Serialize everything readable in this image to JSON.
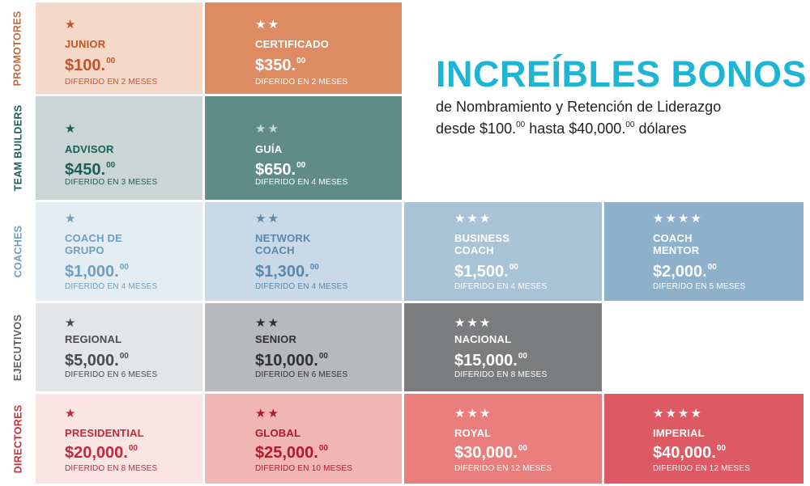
{
  "headline": {
    "title": "INCREÍBLES BONOS",
    "line1": "de Nombramiento y Retención de Liderazgo",
    "line2_a": "desde $100.",
    "line2_a_cents": "00",
    "line2_b": " hasta $40,000.",
    "line2_b_cents": "00",
    "line2_c": " dólares"
  },
  "rows": [
    {
      "label": "PROMOTORES",
      "label_color": "#c26a3f",
      "cells": [
        {
          "stars": "★",
          "name": "JUNIOR",
          "price": "$100.",
          "cents": "00",
          "deferred": "DIFERIDO EN 2 MESES",
          "bg": "#f4d9c9",
          "fg": "#c4532a",
          "star_color": "#c4532a"
        },
        {
          "stars": "★★",
          "name": "CERTIFICADO",
          "price": "$350.",
          "cents": "00",
          "deferred": "DIFERIDO EN 2 MESES",
          "bg": "#dc8b63",
          "fg": "#ffffff",
          "star_color": "#ffffff"
        }
      ]
    },
    {
      "label": "TEAM BUILDERS",
      "label_color": "#175f57",
      "cells": [
        {
          "stars": "★",
          "name": "ADVISOR",
          "price": "$450.",
          "cents": "00",
          "deferred": "DIFERIDO EN 3 MESES",
          "bg": "#cbd6d4",
          "fg": "#175f57",
          "star_color": "#175f57"
        },
        {
          "stars": "★★",
          "name": "GUÍA",
          "price": "$650.",
          "cents": "00",
          "deferred": "DIFERIDO EN 4 MESES",
          "bg": "#5f8c86",
          "fg": "#ffffff",
          "star_color": "#c9d7d5"
        }
      ]
    },
    {
      "label": "COACHES",
      "label_color": "#6e9fbf",
      "cells": [
        {
          "stars": "★",
          "name": "COACH DE GRUPO",
          "price": "$1,000.",
          "cents": "00",
          "deferred": "DIFERIDO EN 4 MESES",
          "bg": "#e4ecf4",
          "fg": "#6e9fbf",
          "star_color": "#6e9fbf"
        },
        {
          "stars": "★★",
          "name": "NETWORK COACH",
          "price": "$1,300.",
          "cents": "00",
          "deferred": "DIFERIDO EN 4 MESES",
          "bg": "#c9d9e7",
          "fg": "#5b88aa",
          "star_color": "#5b88aa"
        },
        {
          "stars": "★★★",
          "name": "BUSINESS COACH",
          "price": "$1,500.",
          "cents": "00",
          "deferred": "DIFERIDO EN 4 MESES",
          "bg": "#a9c3d6",
          "fg": "#ffffff",
          "star_color": "#ffffff"
        },
        {
          "stars": "★★★★",
          "name": "COACH MENTOR",
          "price": "$2,000.",
          "cents": "00",
          "deferred": "DIFERIDO EN 5 MESES",
          "bg": "#8db1cb",
          "fg": "#ffffff",
          "star_color": "#ffffff"
        }
      ]
    },
    {
      "label": "EJECUTIVOS",
      "label_color": "#5e5f61",
      "cells": [
        {
          "stars": "★",
          "name": "REGIONAL",
          "price": "$5,000.",
          "cents": "00",
          "deferred": "DIFERIDO EN 6 MESES",
          "bg": "#e4e5e6",
          "fg": "#4a4b4d",
          "star_color": "#4a4b4d"
        },
        {
          "stars": "★★",
          "name": "SENIOR",
          "price": "$10,000.",
          "cents": "00",
          "deferred": "DIFERIDO EN 6 MESES",
          "bg": "#b8b9bb",
          "fg": "#2f3032",
          "star_color": "#2f3032"
        },
        {
          "stars": "★★★",
          "name": "NACIONAL",
          "price": "$15,000.",
          "cents": "00",
          "deferred": "DIFERIDO EN 8 MESES",
          "bg": "#7b7c7e",
          "fg": "#ffffff",
          "star_color": "#ffffff"
        }
      ]
    },
    {
      "label": "DIRECTORES",
      "label_color": "#c82f43",
      "cells": [
        {
          "stars": "★",
          "name": "PRESIDENTIAL",
          "price": "$20,000.",
          "cents": "00",
          "deferred": "DIFERIDO EN 8 MESES",
          "bg": "#fae5e3",
          "fg": "#c3283c",
          "star_color": "#c3283c"
        },
        {
          "stars": "★★",
          "name": "GLOBAL",
          "price": "$25,000.",
          "cents": "00",
          "deferred": "DIFERIDO EN 10 MESES",
          "bg": "#f1b6b2",
          "fg": "#b3182c",
          "star_color": "#b3182c"
        },
        {
          "stars": "★★★",
          "name": "ROYAL",
          "price": "$30,000.",
          "cents": "00",
          "deferred": "DIFERIDO EN 12 MESES",
          "bg": "#e97e7c",
          "fg": "#ffffff",
          "star_color": "#ffffff"
        },
        {
          "stars": "★★★★",
          "name": "IMPERIAL",
          "price": "$40,000.",
          "cents": "00",
          "deferred": "DIFERIDO EN 12 MESES",
          "bg": "#dd5963",
          "fg": "#ffffff",
          "star_color": "#ffffff"
        }
      ]
    }
  ]
}
